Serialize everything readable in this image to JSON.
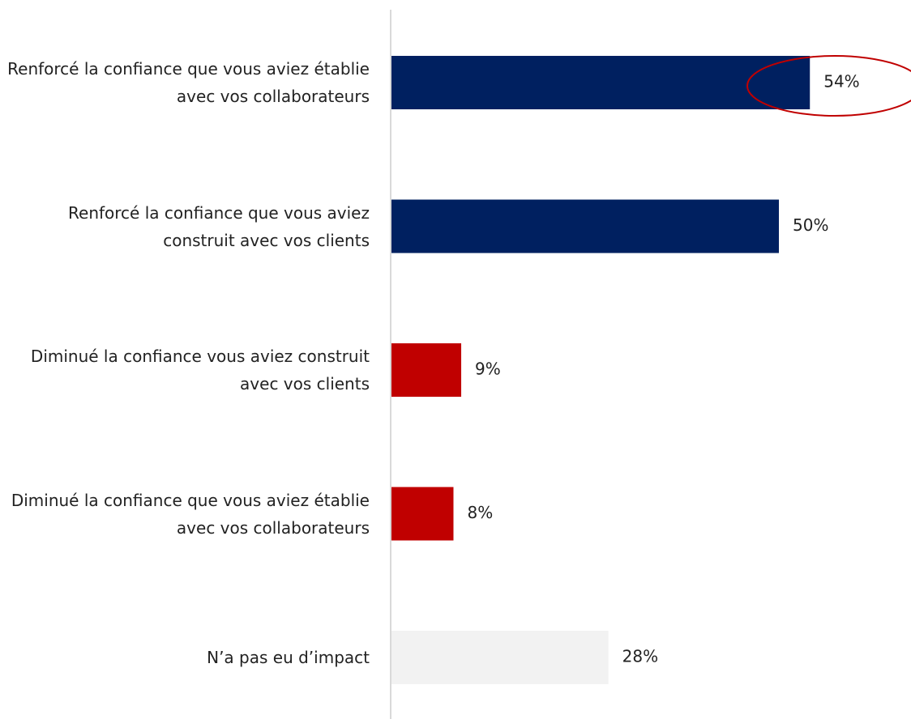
{
  "chart_data": {
    "type": "bar",
    "orientation": "horizontal",
    "categories": [
      "Renforcé la confiance que vous aviez établie avec vos collaborateurs",
      "Renforcé la confiance que vous aviez construit avec vos clients",
      "Diminué la confiance vous aviez construit avec vos clients",
      "Diminué la confiance que vous aviez établie avec vos collaborateurs",
      "N’a pas eu d’impact"
    ],
    "values": [
      54,
      50,
      9,
      8,
      28
    ],
    "value_labels": [
      "54%",
      "50%",
      "9%",
      "8%",
      "28%"
    ],
    "colors": [
      "#002060",
      "#002060",
      "#c00000",
      "#c00000",
      "#f2f2f2"
    ]
  }
}
